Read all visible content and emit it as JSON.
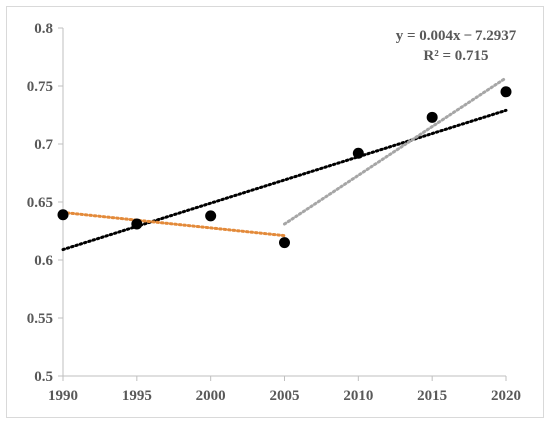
{
  "chart_data": {
    "type": "scatter",
    "title": "",
    "xlabel": "",
    "ylabel": "",
    "xlim": [
      1990,
      2020
    ],
    "ylim": [
      0.5,
      0.8
    ],
    "x_ticks": [
      1990,
      1995,
      2000,
      2005,
      2010,
      2015,
      2020
    ],
    "y_ticks": [
      0.5,
      0.55,
      0.6,
      0.65,
      0.7,
      0.75,
      0.8
    ],
    "x_tick_labels": [
      "1990",
      "1995",
      "2000",
      "2005",
      "2010",
      "2015",
      "2020"
    ],
    "y_tick_labels": [
      "0.5",
      "0.55",
      "0.6",
      "0.65",
      "0.7",
      "0.75",
      "0.8"
    ],
    "grid": false,
    "series": [
      {
        "color": "#000000",
        "x": [
          1990,
          1995,
          2000,
          2005,
          2010,
          2015,
          2020
        ],
        "y": [
          0.639,
          0.631,
          0.638,
          0.615,
          0.692,
          0.723,
          0.745
        ]
      }
    ],
    "trendlines": [
      {
        "color": "#000000",
        "x": [
          1990,
          2020
        ],
        "y": [
          0.609,
          0.729
        ]
      },
      {
        "color": "#e38a3a",
        "x": [
          1990,
          2005
        ],
        "y": [
          0.641,
          0.621
        ]
      },
      {
        "color": "#a6a6a6",
        "x": [
          2005,
          2020
        ],
        "y": [
          0.631,
          0.757
        ]
      }
    ],
    "annotations": {
      "equation": "y = 0.004x − 7.2937",
      "r_squared": "R² = 0.715"
    }
  }
}
